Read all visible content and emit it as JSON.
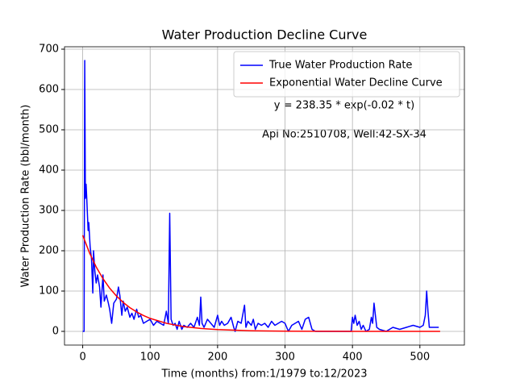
{
  "chart_data": {
    "type": "line",
    "title": "Water Production Decline Curve",
    "xlabel": "Time (months) from:1/1979 to:12/2023",
    "ylabel": "Water Production Rate (bbl/month)",
    "annotations": [
      "y = 238.35 * exp(-0.02 * t)",
      "Api No:2510708, Well:42-SX-34"
    ],
    "xlim": [
      -27,
      566
    ],
    "ylim": [
      -34,
      706
    ],
    "xticks": [
      0,
      100,
      200,
      300,
      400,
      500
    ],
    "yticks": [
      0,
      100,
      200,
      300,
      400,
      500,
      600,
      700
    ],
    "grid": true,
    "legend": "upper right",
    "series": [
      {
        "name": "True Water Production Rate",
        "color": "#0000ff",
        "x": [
          0,
          2,
          3,
          4,
          5,
          6,
          8,
          9,
          11,
          13,
          15,
          16,
          18,
          20,
          22,
          25,
          27,
          30,
          32,
          35,
          38,
          40,
          43,
          46,
          50,
          53,
          55,
          58,
          60,
          63,
          66,
          70,
          73,
          76,
          80,
          83,
          86,
          90,
          95,
          100,
          105,
          110,
          115,
          120,
          124,
          127,
          129,
          131,
          134,
          137,
          140,
          143,
          147,
          150,
          155,
          160,
          165,
          170,
          173,
          175,
          177,
          180,
          185,
          190,
          195,
          200,
          203,
          206,
          210,
          215,
          220,
          224,
          226,
          230,
          235,
          240,
          242,
          245,
          250,
          253,
          256,
          260,
          265,
          270,
          275,
          280,
          285,
          290,
          295,
          300,
          305,
          310,
          315,
          320,
          325,
          330,
          335,
          340,
          345,
          360,
          380,
          398,
          400,
          402,
          404,
          407,
          410,
          413,
          416,
          420,
          425,
          428,
          430,
          432,
          434,
          436,
          440,
          450,
          460,
          470,
          480,
          490,
          500,
          505,
          508,
          510,
          512,
          514,
          520,
          528
        ],
        "values": [
          0,
          0,
          672,
          330,
          365,
          330,
          250,
          270,
          210,
          180,
          95,
          200,
          150,
          120,
          140,
          110,
          60,
          140,
          75,
          90,
          70,
          55,
          20,
          70,
          80,
          110,
          90,
          40,
          75,
          50,
          60,
          35,
          45,
          30,
          55,
          35,
          40,
          20,
          25,
          30,
          15,
          25,
          20,
          15,
          50,
          20,
          293,
          30,
          15,
          20,
          5,
          25,
          5,
          15,
          10,
          20,
          10,
          35,
          15,
          85,
          20,
          10,
          30,
          20,
          10,
          40,
          15,
          25,
          15,
          20,
          35,
          10,
          0,
          25,
          20,
          65,
          10,
          25,
          15,
          30,
          5,
          20,
          15,
          20,
          10,
          25,
          15,
          20,
          25,
          20,
          0,
          15,
          20,
          25,
          5,
          30,
          35,
          5,
          0,
          0,
          0,
          0,
          35,
          20,
          40,
          15,
          25,
          5,
          15,
          0,
          5,
          35,
          20,
          70,
          40,
          10,
          5,
          0,
          10,
          5,
          10,
          15,
          10,
          15,
          40,
          100,
          50,
          10,
          10,
          10
        ]
      },
      {
        "name": "Exponential Water Decline Curve",
        "color": "#ff0000",
        "x": [
          0,
          10,
          20,
          30,
          40,
          50,
          60,
          70,
          80,
          90,
          100,
          125,
          150,
          175,
          200,
          250,
          300,
          350,
          400,
          450,
          530
        ],
        "values": [
          238.35,
          195.1,
          159.8,
          130.8,
          107.1,
          87.7,
          71.8,
          58.8,
          48.1,
          39.4,
          32.3,
          19.6,
          11.9,
          7.2,
          4.4,
          1.6,
          0.6,
          0.2,
          0.08,
          0.03,
          0.006
        ]
      }
    ]
  }
}
